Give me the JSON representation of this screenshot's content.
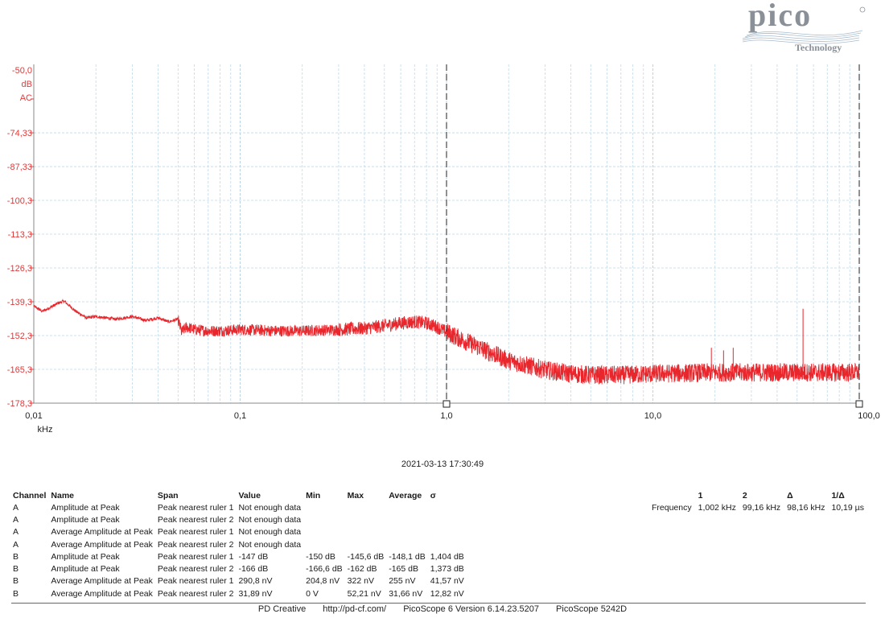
{
  "brand": {
    "name": "pico",
    "subtitle": "Technology"
  },
  "chart_data": {
    "type": "line",
    "x_scale": "log",
    "xlim": [
      0.01,
      100.0
    ],
    "ylim": [
      -178.3,
      -48.0
    ],
    "y_ticks": [
      -178.3,
      -165.3,
      -152.3,
      -139.3,
      -126.3,
      -113.3,
      -100.3,
      -87.33,
      -74.33
    ],
    "y_tick_labels": [
      "-178,3",
      "-165,3",
      "-152,3",
      "-139,3",
      "-126,3",
      "-113,3",
      "-100,3",
      "-87,33",
      "-74,33"
    ],
    "y_top_labels": [
      "-50,0",
      "dB",
      "AC"
    ],
    "x_tick_labels": [
      "0,01",
      "0,1",
      "1,0",
      "10,0",
      "100,0"
    ],
    "x_unit": "kHz",
    "grid": true,
    "series": [
      {
        "color": "#e8262c",
        "x": [
          0.01,
          0.011,
          0.012,
          0.013,
          0.014,
          0.016,
          0.018,
          0.02,
          0.025,
          0.03,
          0.035,
          0.04,
          0.045,
          0.05,
          0.052,
          0.055,
          0.06,
          0.07,
          0.08,
          0.1,
          0.15,
          0.2,
          0.3,
          0.4,
          0.5,
          0.6,
          0.7,
          0.8,
          0.9,
          1.0,
          1.2,
          1.5,
          2.0,
          3.0,
          4.0,
          5.0,
          7.0,
          10.0,
          20.0,
          30.0,
          50.0,
          100.0
        ],
        "y": [
          -141,
          -143,
          -141.5,
          -140,
          -139,
          -143,
          -145.5,
          -145,
          -146,
          -145,
          -146.5,
          -145.5,
          -147,
          -146,
          -151,
          -149,
          -150,
          -150.5,
          -150.5,
          -150,
          -150.5,
          -150.5,
          -150,
          -149.5,
          -148.5,
          -147.5,
          -147,
          -147.5,
          -149,
          -151,
          -154,
          -157.5,
          -162,
          -165.5,
          -167,
          -167.5,
          -167.5,
          -167,
          -166.5,
          -166.5,
          -166.5,
          -166.5
        ]
      }
    ],
    "spikes": [
      {
        "x": 19.2,
        "y": -157
      },
      {
        "x": 22.0,
        "y": -158
      },
      {
        "x": 24.5,
        "y": -157
      },
      {
        "x": 53.4,
        "y": -142
      }
    ],
    "rulers_khz": [
      1.0,
      100.0
    ]
  },
  "timestamp": "2021-03-13 17:30:49",
  "measurements": {
    "headers": [
      "Channel",
      "Name",
      "Span",
      "Value",
      "Min",
      "Max",
      "Average",
      "σ"
    ],
    "rows": [
      [
        "A",
        "Amplitude at Peak",
        "Peak nearest ruler 1",
        "Not enough data",
        "",
        "",
        "",
        ""
      ],
      [
        "A",
        "Amplitude at Peak",
        "Peak nearest ruler 2",
        "Not enough data",
        "",
        "",
        "",
        ""
      ],
      [
        "A",
        "Average Amplitude at Peak",
        "Peak nearest ruler 1",
        "Not enough data",
        "",
        "",
        "",
        ""
      ],
      [
        "A",
        "Average Amplitude at Peak",
        "Peak nearest ruler 2",
        "Not enough data",
        "",
        "",
        "",
        ""
      ],
      [
        "B",
        "Amplitude at Peak",
        "Peak nearest ruler 1",
        "-147 dB",
        "-150 dB",
        "-145,6 dB",
        "-148,1 dB",
        "1,404 dB"
      ],
      [
        "B",
        "Amplitude at Peak",
        "Peak nearest ruler 2",
        "-166 dB",
        "-166,6 dB",
        "-162 dB",
        "-165 dB",
        "1,373 dB"
      ],
      [
        "B",
        "Average Amplitude at Peak",
        "Peak nearest ruler 1",
        "290,8 nV",
        "204,8 nV",
        "322 nV",
        "255 nV",
        "41,57 nV"
      ],
      [
        "B",
        "Average Amplitude at Peak",
        "Peak nearest ruler 2",
        "31,89 nV",
        "0 V",
        "52,21 nV",
        "31,66 nV",
        "12,82 nV"
      ]
    ]
  },
  "rulers": {
    "headers": [
      "",
      "1",
      "2",
      "Δ",
      "1/Δ"
    ],
    "row": [
      "Frequency",
      "1,002 kHz",
      "99,16 kHz",
      "98,16 kHz",
      "10,19 µs"
    ]
  },
  "footer": {
    "company": "PD Creative",
    "url": "http://pd-cf.com/",
    "version": "PicoScope 6 Version 6.14.23.5207",
    "device": "PicoScope 5242D"
  }
}
